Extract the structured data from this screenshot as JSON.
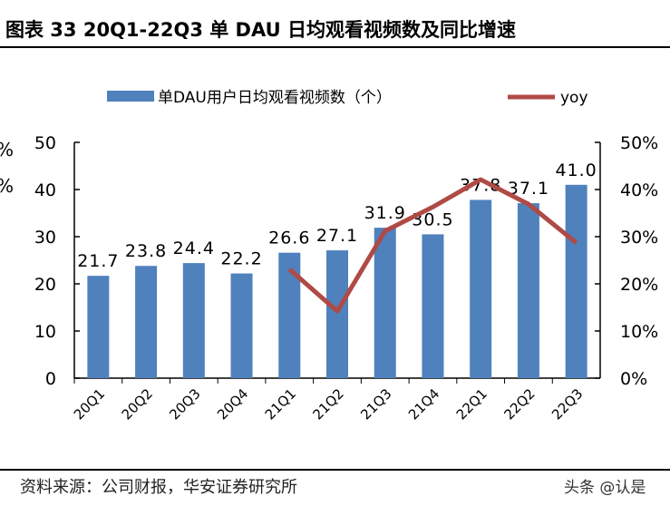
{
  "header": {
    "title": "图表 33 20Q1-22Q3 单 DAU 日均观看视频数及同比增速"
  },
  "footer": {
    "source": "资料来源：公司财报，华安证券研究所",
    "watermark": "头条 @认是"
  },
  "cropped_left_labels": [
    "%",
    "%"
  ],
  "chart_data": {
    "type": "bar+line",
    "categories": [
      "20Q1",
      "20Q2",
      "20Q3",
      "20Q4",
      "21Q1",
      "21Q2",
      "21Q3",
      "21Q4",
      "22Q1",
      "22Q2",
      "22Q3"
    ],
    "series": [
      {
        "name": "单DAU用户日均观看视频数（个）",
        "type": "bar",
        "axis": "left",
        "color": "#4F81BD",
        "values": [
          21.7,
          23.8,
          24.4,
          22.2,
          26.6,
          27.1,
          31.9,
          30.5,
          37.8,
          37.1,
          41.0
        ],
        "labels": [
          "21.7",
          "23.8",
          "24.4",
          "22.2",
          "26.6",
          "27.1",
          "31.9",
          "30.5",
          "37.8",
          "37.1",
          "41.0"
        ]
      },
      {
        "name": "yoy",
        "type": "line",
        "axis": "right",
        "color": "#B04A46",
        "values": [
          null,
          null,
          null,
          null,
          23.1,
          14.2,
          31.2,
          36.3,
          42.1,
          36.9,
          28.7
        ]
      }
    ],
    "y_left": {
      "min": 0,
      "max": 50,
      "ticks": [
        "0",
        "10",
        "20",
        "30",
        "40",
        "50"
      ]
    },
    "y_right": {
      "min": 0,
      "max": 50,
      "ticks": [
        "0%",
        "10%",
        "20%",
        "30%",
        "40%",
        "50%"
      ]
    },
    "legend": "top",
    "grid": false
  }
}
